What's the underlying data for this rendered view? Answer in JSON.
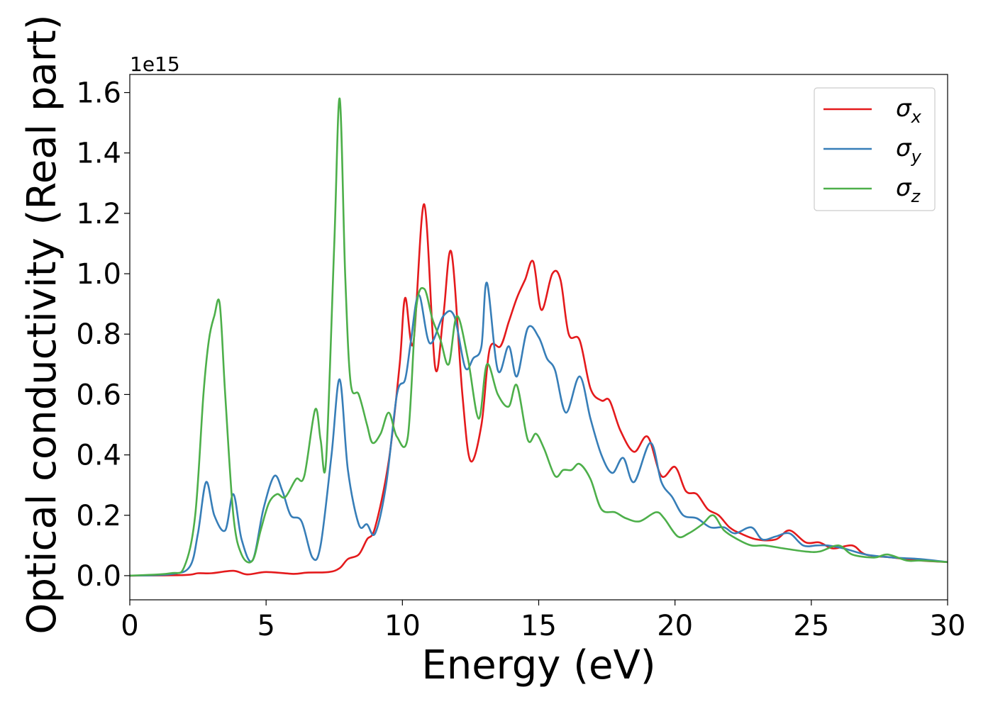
{
  "chart_data": {
    "type": "line",
    "xlabel": "Energy (eV)",
    "ylabel": "Optical conductivity (Real part)",
    "y_offset_label": "1e15",
    "xlim": [
      0,
      30
    ],
    "ylim": [
      -0.08,
      1.66
    ],
    "x_ticks": [
      0,
      5,
      10,
      15,
      20,
      25,
      30
    ],
    "x_tick_labels": [
      "0",
      "5",
      "10",
      "15",
      "20",
      "25",
      "30"
    ],
    "y_ticks": [
      0.0,
      0.2,
      0.4,
      0.6,
      0.8,
      1.0,
      1.2,
      1.4,
      1.6
    ],
    "y_tick_labels": [
      "0.0",
      "0.2",
      "0.4",
      "0.6",
      "0.8",
      "1.0",
      "1.2",
      "1.4",
      "1.6"
    ],
    "grid": false,
    "legend_position": "top-right",
    "series": [
      {
        "name": "σx",
        "legend_main": "σ",
        "legend_sub": "x",
        "color": "#e41a1c",
        "points": [
          [
            0,
            0
          ],
          [
            2,
            0.002
          ],
          [
            2.5,
            0.008
          ],
          [
            3,
            0.008
          ],
          [
            3.8,
            0.016
          ],
          [
            4.3,
            0.004
          ],
          [
            5,
            0.012
          ],
          [
            6,
            0.006
          ],
          [
            6.5,
            0.01
          ],
          [
            7.3,
            0.012
          ],
          [
            7.7,
            0.025
          ],
          [
            8,
            0.055
          ],
          [
            8.4,
            0.07
          ],
          [
            8.7,
            0.12
          ],
          [
            9,
            0.16
          ],
          [
            9.5,
            0.38
          ],
          [
            9.9,
            0.7
          ],
          [
            10.1,
            0.92
          ],
          [
            10.4,
            0.77
          ],
          [
            10.8,
            1.23
          ],
          [
            11.2,
            0.69
          ],
          [
            11.5,
            0.86
          ],
          [
            11.8,
            1.07
          ],
          [
            12.2,
            0.6
          ],
          [
            12.5,
            0.38
          ],
          [
            12.9,
            0.5
          ],
          [
            13.2,
            0.75
          ],
          [
            13.6,
            0.76
          ],
          [
            13.9,
            0.84
          ],
          [
            14.2,
            0.92
          ],
          [
            14.5,
            0.98
          ],
          [
            14.8,
            1.04
          ],
          [
            15.1,
            0.88
          ],
          [
            15.5,
            1.0
          ],
          [
            15.8,
            0.98
          ],
          [
            16.1,
            0.8
          ],
          [
            16.5,
            0.78
          ],
          [
            16.9,
            0.62
          ],
          [
            17.3,
            0.58
          ],
          [
            17.6,
            0.58
          ],
          [
            18,
            0.48
          ],
          [
            18.5,
            0.41
          ],
          [
            19,
            0.46
          ],
          [
            19.5,
            0.33
          ],
          [
            20,
            0.36
          ],
          [
            20.4,
            0.28
          ],
          [
            20.8,
            0.27
          ],
          [
            21.2,
            0.22
          ],
          [
            21.6,
            0.2
          ],
          [
            22,
            0.16
          ],
          [
            22.4,
            0.14
          ],
          [
            23,
            0.12
          ],
          [
            23.7,
            0.12
          ],
          [
            24.2,
            0.15
          ],
          [
            24.8,
            0.11
          ],
          [
            25.3,
            0.11
          ],
          [
            25.8,
            0.09
          ],
          [
            26.5,
            0.1
          ],
          [
            27,
            0.07
          ],
          [
            28,
            0.06
          ],
          [
            29,
            0.05
          ],
          [
            30,
            0.045
          ]
        ]
      },
      {
        "name": "σy",
        "legend_main": "σ",
        "legend_sub": "y",
        "color": "#377eb8",
        "points": [
          [
            0,
            0
          ],
          [
            1.5,
            0.005
          ],
          [
            2.2,
            0.03
          ],
          [
            2.5,
            0.14
          ],
          [
            2.8,
            0.31
          ],
          [
            3.1,
            0.2
          ],
          [
            3.5,
            0.15
          ],
          [
            3.8,
            0.27
          ],
          [
            4.1,
            0.12
          ],
          [
            4.5,
            0.05
          ],
          [
            4.9,
            0.22
          ],
          [
            5.3,
            0.33
          ],
          [
            5.6,
            0.28
          ],
          [
            5.9,
            0.2
          ],
          [
            6.3,
            0.18
          ],
          [
            6.7,
            0.06
          ],
          [
            7.0,
            0.1
          ],
          [
            7.4,
            0.4
          ],
          [
            7.7,
            0.65
          ],
          [
            8.0,
            0.35
          ],
          [
            8.4,
            0.17
          ],
          [
            8.7,
            0.17
          ],
          [
            9.0,
            0.14
          ],
          [
            9.4,
            0.3
          ],
          [
            9.8,
            0.6
          ],
          [
            10.1,
            0.65
          ],
          [
            10.3,
            0.77
          ],
          [
            10.6,
            0.93
          ],
          [
            11.0,
            0.77
          ],
          [
            11.5,
            0.86
          ],
          [
            11.9,
            0.86
          ],
          [
            12.3,
            0.69
          ],
          [
            12.6,
            0.72
          ],
          [
            12.9,
            0.76
          ],
          [
            13.1,
            0.97
          ],
          [
            13.5,
            0.68
          ],
          [
            13.9,
            0.76
          ],
          [
            14.2,
            0.66
          ],
          [
            14.6,
            0.82
          ],
          [
            15.0,
            0.79
          ],
          [
            15.3,
            0.72
          ],
          [
            15.6,
            0.68
          ],
          [
            16.0,
            0.54
          ],
          [
            16.5,
            0.66
          ],
          [
            16.9,
            0.52
          ],
          [
            17.3,
            0.4
          ],
          [
            17.7,
            0.34
          ],
          [
            18.1,
            0.39
          ],
          [
            18.5,
            0.31
          ],
          [
            19.1,
            0.44
          ],
          [
            19.5,
            0.31
          ],
          [
            19.9,
            0.26
          ],
          [
            20.3,
            0.2
          ],
          [
            20.8,
            0.19
          ],
          [
            21.3,
            0.16
          ],
          [
            21.8,
            0.16
          ],
          [
            22.2,
            0.14
          ],
          [
            22.8,
            0.16
          ],
          [
            23.2,
            0.12
          ],
          [
            23.7,
            0.13
          ],
          [
            24.2,
            0.14
          ],
          [
            24.7,
            0.1
          ],
          [
            25.2,
            0.1
          ],
          [
            25.6,
            0.1
          ],
          [
            26.2,
            0.09
          ],
          [
            27,
            0.07
          ],
          [
            28,
            0.06
          ],
          [
            29,
            0.055
          ],
          [
            30,
            0.045
          ]
        ]
      },
      {
        "name": "σz",
        "legend_main": "σ",
        "legend_sub": "z",
        "color": "#4daf4a",
        "points": [
          [
            0,
            0
          ],
          [
            1.5,
            0.008
          ],
          [
            2.0,
            0.03
          ],
          [
            2.4,
            0.2
          ],
          [
            2.7,
            0.6
          ],
          [
            2.9,
            0.78
          ],
          [
            3.1,
            0.86
          ],
          [
            3.3,
            0.9
          ],
          [
            3.5,
            0.6
          ],
          [
            3.8,
            0.2
          ],
          [
            4.1,
            0.07
          ],
          [
            4.5,
            0.05
          ],
          [
            4.8,
            0.15
          ],
          [
            5.1,
            0.24
          ],
          [
            5.4,
            0.27
          ],
          [
            5.7,
            0.26
          ],
          [
            6.1,
            0.32
          ],
          [
            6.4,
            0.33
          ],
          [
            6.8,
            0.55
          ],
          [
            7.0,
            0.45
          ],
          [
            7.2,
            0.38
          ],
          [
            7.5,
            1.1
          ],
          [
            7.7,
            1.58
          ],
          [
            7.9,
            1.0
          ],
          [
            8.1,
            0.64
          ],
          [
            8.4,
            0.6
          ],
          [
            8.7,
            0.5
          ],
          [
            8.9,
            0.44
          ],
          [
            9.2,
            0.47
          ],
          [
            9.5,
            0.54
          ],
          [
            9.8,
            0.46
          ],
          [
            10.2,
            0.46
          ],
          [
            10.5,
            0.88
          ],
          [
            10.8,
            0.95
          ],
          [
            11.1,
            0.85
          ],
          [
            11.4,
            0.78
          ],
          [
            11.7,
            0.7
          ],
          [
            12.0,
            0.86
          ],
          [
            12.4,
            0.72
          ],
          [
            12.8,
            0.52
          ],
          [
            13.1,
            0.7
          ],
          [
            13.5,
            0.6
          ],
          [
            13.9,
            0.56
          ],
          [
            14.2,
            0.63
          ],
          [
            14.6,
            0.45
          ],
          [
            14.9,
            0.47
          ],
          [
            15.2,
            0.42
          ],
          [
            15.6,
            0.33
          ],
          [
            15.9,
            0.35
          ],
          [
            16.2,
            0.35
          ],
          [
            16.5,
            0.37
          ],
          [
            16.9,
            0.32
          ],
          [
            17.3,
            0.22
          ],
          [
            17.8,
            0.21
          ],
          [
            18.2,
            0.19
          ],
          [
            18.7,
            0.18
          ],
          [
            19.3,
            0.21
          ],
          [
            19.6,
            0.19
          ],
          [
            20.1,
            0.13
          ],
          [
            20.5,
            0.14
          ],
          [
            21.0,
            0.17
          ],
          [
            21.4,
            0.2
          ],
          [
            21.8,
            0.15
          ],
          [
            22.3,
            0.12
          ],
          [
            22.8,
            0.1
          ],
          [
            23.3,
            0.1
          ],
          [
            24,
            0.09
          ],
          [
            24.8,
            0.08
          ],
          [
            25.3,
            0.08
          ],
          [
            26,
            0.1
          ],
          [
            26.5,
            0.07
          ],
          [
            27.3,
            0.06
          ],
          [
            27.8,
            0.07
          ],
          [
            28.5,
            0.05
          ],
          [
            29,
            0.05
          ],
          [
            30,
            0.045
          ]
        ]
      }
    ]
  }
}
